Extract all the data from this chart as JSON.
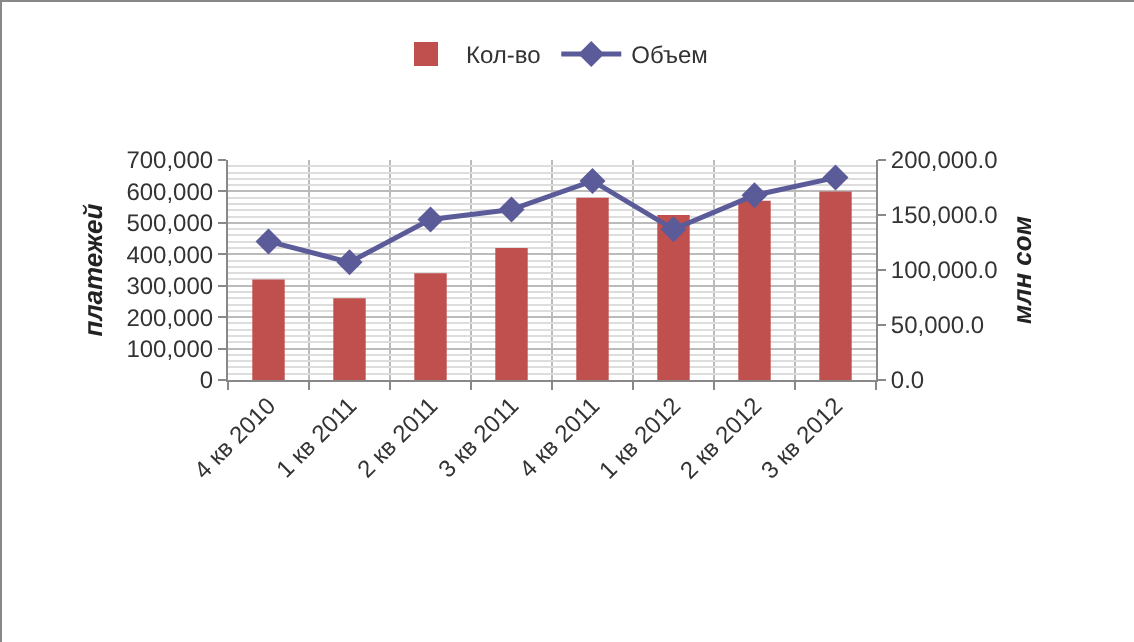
{
  "chart_data": {
    "type": "bar",
    "ylabel": "платежей",
    "y2label": "млн сом",
    "categories": [
      "4 кв 2010",
      "1 кв 2011",
      "2 кв 2011",
      "3 кв 2011",
      "4 кв 2011",
      "1 кв 2012",
      "2 кв 2012",
      "3 кв 2012"
    ],
    "series": [
      {
        "name": "Кол-во",
        "color": "#c0504d",
        "values": [
          320000,
          260000,
          340000,
          420000,
          580000,
          525000,
          570000,
          600000
        ]
      },
      {
        "name": "Объем",
        "type": "line",
        "axis": "y2",
        "color": "#5b5b9a",
        "marker": "diamond",
        "values": [
          126000,
          107000,
          146000,
          155000,
          181000,
          137000,
          168000,
          184000
        ]
      }
    ],
    "ylim": [
      0,
      700000
    ],
    "yticks": [
      {
        "value": 0,
        "label": "0"
      },
      {
        "value": 100000,
        "label": "100,000"
      },
      {
        "value": 200000,
        "label": "200,000"
      },
      {
        "value": 300000,
        "label": "300,000"
      },
      {
        "value": 400000,
        "label": "400,000"
      },
      {
        "value": 500000,
        "label": "500,000"
      },
      {
        "value": 600000,
        "label": "600,000"
      },
      {
        "value": 700000,
        "label": "700,000"
      }
    ],
    "y2lim": [
      0,
      200000
    ],
    "y2ticks": [
      {
        "value": 0,
        "label": "0.0"
      },
      {
        "value": 50000,
        "label": "50,000.0"
      },
      {
        "value": 100000,
        "label": "100,000.0"
      },
      {
        "value": 150000,
        "label": "150,000.0"
      },
      {
        "value": 200000,
        "label": "200,000.0"
      }
    ],
    "grid": true,
    "legend": "top"
  }
}
